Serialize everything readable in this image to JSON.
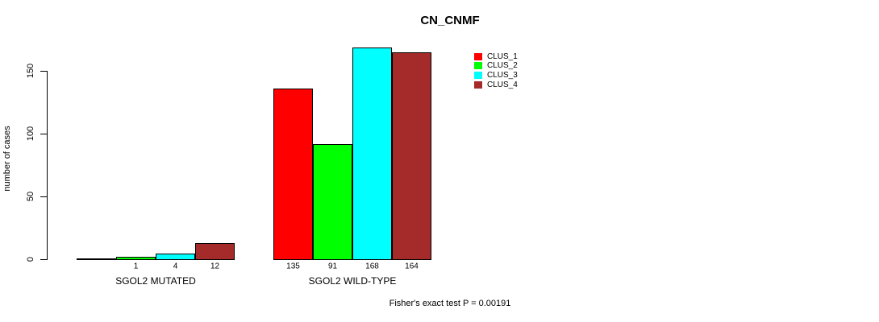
{
  "chart_data": {
    "type": "bar",
    "title": "CN_CNMF",
    "ylabel": "number of cases",
    "xlabel": "",
    "yticks": [
      0,
      50,
      100,
      150
    ],
    "ylim": [
      0,
      168
    ],
    "grid": false,
    "legend_position": "top-right",
    "categories": [
      "SGOL2 MUTATED",
      "SGOL2 WILD-TYPE"
    ],
    "series": [
      {
        "name": "CLUS_1",
        "color": "#ff0000",
        "values": [
          0,
          135
        ]
      },
      {
        "name": "CLUS_2",
        "color": "#00ff00",
        "values": [
          1,
          91
        ]
      },
      {
        "name": "CLUS_3",
        "color": "#00ffff",
        "values": [
          4,
          168
        ]
      },
      {
        "name": "CLUS_4",
        "color": "#a52a2a",
        "values": [
          12,
          164
        ]
      }
    ],
    "bar_value_labels": [
      [
        "",
        "1",
        "4",
        "12"
      ],
      [
        "135",
        "91",
        "168",
        "164"
      ]
    ],
    "annotation": "Fisher's exact test P = 0.00191"
  }
}
